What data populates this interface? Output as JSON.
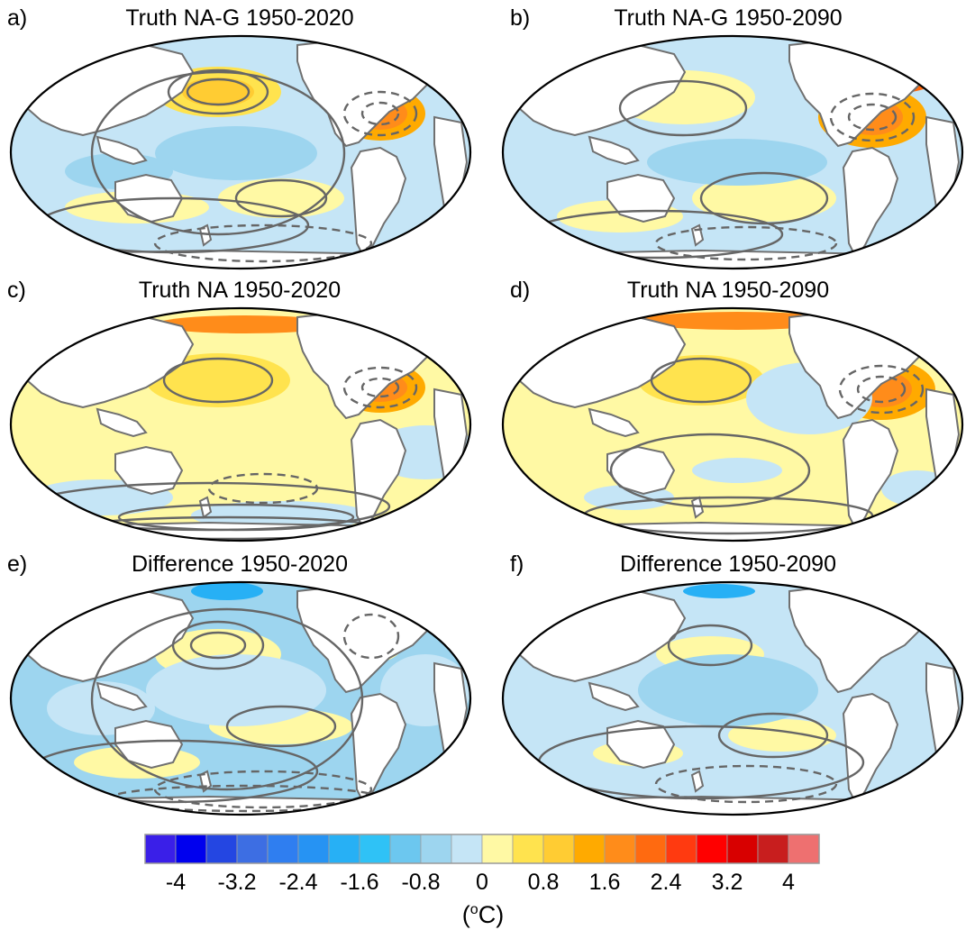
{
  "panels": [
    {
      "letter": "a)",
      "title": "Truth NA-G 1950-2020",
      "variant": "nag2020"
    },
    {
      "letter": "b)",
      "title": "Truth NA-G 1950-2090",
      "variant": "nag2090"
    },
    {
      "letter": "c)",
      "title": "Truth NA 1950-2020",
      "variant": "na2020"
    },
    {
      "letter": "d)",
      "title": "Truth NA 1950-2090",
      "variant": "na2090"
    },
    {
      "letter": "e)",
      "title": "Difference 1950-2020",
      "variant": "diff2020"
    },
    {
      "letter": "f)",
      "title": "Difference 1950-2090",
      "variant": "diff2090"
    }
  ],
  "colorbar": {
    "colors": [
      "#3a1fe8",
      "#0000ee",
      "#2446e2",
      "#3d6ee3",
      "#2f7ef0",
      "#2693f3",
      "#27b0f5",
      "#2fc2f6",
      "#6cc7ef",
      "#9dd5ef",
      "#c5e5f6",
      "#fff9a4",
      "#ffe34e",
      "#ffcc33",
      "#ffaa00",
      "#ff8c1a",
      "#ff6a10",
      "#ff3a10",
      "#ff0000",
      "#d80000",
      "#c81e1e",
      "#ee7070"
    ],
    "tick_labels": [
      "-4",
      "-3.2",
      "-2.4",
      "-1.6",
      "-0.8",
      "0",
      "0.8",
      "1.6",
      "2.4",
      "3.2",
      "4"
    ],
    "units_base": "(",
    "units_sup": "o",
    "units_rest": "C)"
  }
}
